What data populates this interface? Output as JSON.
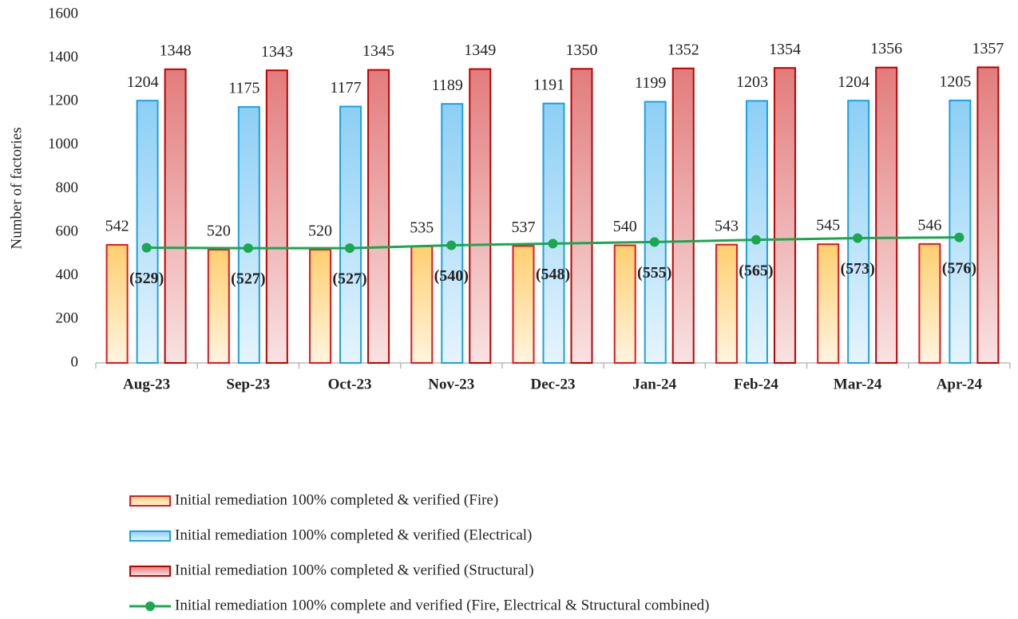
{
  "chart_data": {
    "type": "bar",
    "y_label": "Number of factories",
    "categories": [
      "Aug-23",
      "Sep-23",
      "Oct-23",
      "Nov-23",
      "Dec-23",
      "Jan-24",
      "Feb-24",
      "Mar-24",
      "Apr-24"
    ],
    "series": [
      {
        "name": "Initial remediation 100% completed & verified (Fire)",
        "color": "#ffcf70",
        "border_color": "#e8141c",
        "values": [
          542,
          520,
          520,
          535,
          537,
          540,
          543,
          545,
          546
        ]
      },
      {
        "name": "Initial remediation 100% completed & verified (Electrical)",
        "color": "#8ccff5",
        "border_color": "#1ba1e2",
        "values": [
          1204,
          1175,
          1177,
          1189,
          1191,
          1199,
          1203,
          1204,
          1205
        ]
      },
      {
        "name": "Initial remediation 100% completed & verified (Structural)",
        "color": "#e27c7c",
        "border_color": "#c00000",
        "values": [
          1348,
          1343,
          1345,
          1349,
          1350,
          1352,
          1354,
          1356,
          1357
        ]
      },
      {
        "name": "Initial remediation 100% complete and verified (Fire, Electrical & Structural combined)",
        "type": "line",
        "color": "#19a84f",
        "values": [
          529,
          527,
          527,
          540,
          548,
          555,
          565,
          573,
          576
        ],
        "value_labels": [
          "(529)",
          "(527)",
          "(527)",
          "(540)",
          "(548)",
          "(555)",
          "(565)",
          "(573)",
          "(576)"
        ]
      }
    ],
    "ylim": [
      0,
      1600
    ],
    "yticks": [
      0,
      200,
      400,
      600,
      800,
      1000,
      1200,
      1400,
      1600
    ],
    "grid": false,
    "legend": "bottom"
  }
}
